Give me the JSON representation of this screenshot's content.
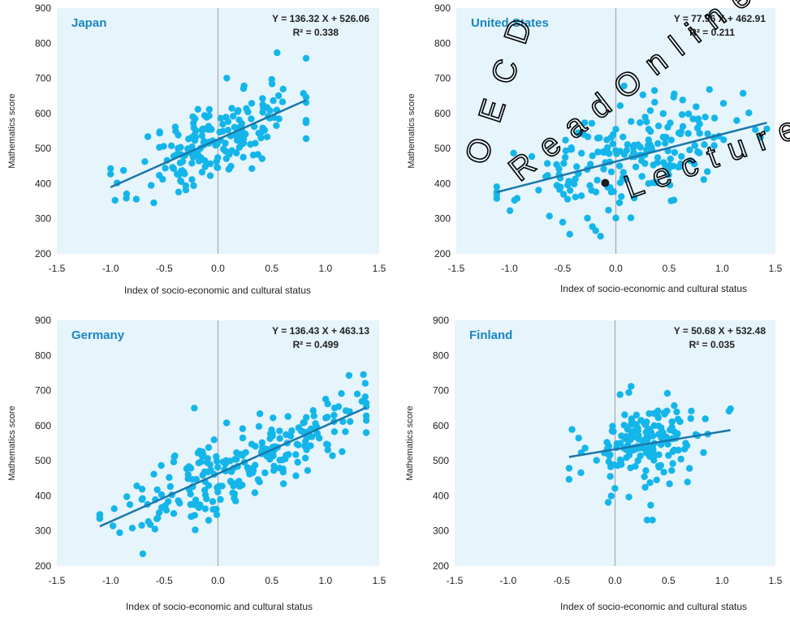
{
  "colors": {
    "plot_background": "#e6f4fc",
    "point": "#14b6ea",
    "trend_line": "#1a77a8",
    "country_label": "#1a86c0",
    "zero_line": "#a9a9a9",
    "axis_text": "#222222",
    "watermark": "#000000"
  },
  "watermark": {
    "lines": [
      "O E C D",
      "R e a d  O n l i n e",
      "L e c t u r e  s e u l e"
    ],
    "note": "OECD Read Online - Lecture seule"
  },
  "chart_data": [
    {
      "type": "scatter",
      "panel": "top-left",
      "country": "Japan",
      "equation": "Y = 136.32 X + 526.06",
      "r2": "R² = 0.338",
      "xlabel": "Index of socio-economic and cultural status",
      "ylabel": "Mathematics score",
      "xlim": [
        -1.5,
        1.5
      ],
      "ylim": [
        200,
        900
      ],
      "xticks": [
        "-1.5",
        "-1.0",
        "-0.5",
        "0.0",
        "0.5",
        "1.0",
        "1.5"
      ],
      "yticks": [
        "200",
        "300",
        "400",
        "500",
        "600",
        "700",
        "800",
        "900"
      ],
      "trend": {
        "slope": 136.32,
        "intercept": 526.06,
        "x_range": [
          -1.0,
          0.82
        ]
      },
      "seed": 11,
      "n_points": 190,
      "x_mean": 0.0,
      "x_sd": 0.38,
      "x_min": -1.0,
      "x_max": 0.82,
      "resid_sd": 60,
      "extra_points": [
        [
          -1.0,
          427
        ],
        [
          0.55,
          773
        ],
        [
          0.5,
          697
        ],
        [
          0.82,
          528
        ]
      ]
    },
    {
      "type": "scatter",
      "panel": "top-right",
      "country": "United States",
      "equation": "Y = 77.96 X + 462.91",
      "r2": "R² = 0.211",
      "xlabel": "Index of socio-economic and cultural status",
      "ylabel": "Mathematics score",
      "xlim": [
        -1.5,
        1.5
      ],
      "ylim": [
        200,
        900
      ],
      "xticks": [
        "-1.5",
        "-1.0",
        "-0.5",
        "0.0",
        "0.5",
        "1.0",
        "1.5"
      ],
      "yticks": [
        "200",
        "300",
        "400",
        "500",
        "600",
        "700",
        "800",
        "900"
      ],
      "trend": {
        "slope": 77.96,
        "intercept": 462.91,
        "x_range": [
          -1.12,
          1.42
        ]
      },
      "seed": 23,
      "n_points": 200,
      "x_mean": 0.1,
      "x_sd": 0.5,
      "x_min": -1.12,
      "x_max": 1.42,
      "resid_sd": 68,
      "extra_points": [
        [
          -1.12,
          376
        ],
        [
          1.42,
          556
        ],
        [
          0.88,
          668
        ],
        [
          -0.5,
          290
        ],
        [
          0.0,
          555
        ],
        [
          0.0,
          302
        ]
      ],
      "highlight_point": [
        -0.1,
        402
      ]
    },
    {
      "type": "scatter",
      "panel": "bottom-left",
      "country": "Germany",
      "equation": "Y = 136.43 X + 463.13",
      "r2": "R² = 0.499",
      "xlabel": "Index of socio-economic and cultural status",
      "ylabel": "Mathematics score",
      "xlim": [
        -1.5,
        1.5
      ],
      "ylim": [
        200,
        900
      ],
      "xticks": [
        "-1.5",
        "-1.0",
        "-0.5",
        "0.0",
        "0.5",
        "1.0",
        "1.5"
      ],
      "yticks": [
        "200",
        "300",
        "400",
        "500",
        "600",
        "700",
        "800",
        "900"
      ],
      "trend": {
        "slope": 136.43,
        "intercept": 463.13,
        "x_range": [
          -1.1,
          1.38
        ]
      },
      "seed": 37,
      "n_points": 240,
      "x_mean": 0.2,
      "x_sd": 0.55,
      "x_min": -1.1,
      "x_max": 1.38,
      "resid_sd": 55,
      "extra_points": [
        [
          -1.1,
          347
        ],
        [
          -0.7,
          235
        ],
        [
          1.22,
          743
        ],
        [
          1.38,
          615
        ],
        [
          -0.22,
          650
        ]
      ]
    },
    {
      "type": "scatter",
      "panel": "bottom-right",
      "country": "Finland",
      "equation": "Y = 50.68 X + 532.48",
      "r2": "R² = 0.035",
      "xlabel": "Index of socio-economic and cultural status",
      "ylabel": "Mathematics score",
      "xlim": [
        -1.5,
        1.5
      ],
      "ylim": [
        200,
        900
      ],
      "xticks": [
        "-1.5",
        "-1.0",
        "-0.5",
        "0.0",
        "0.5",
        "1.0",
        "1.5"
      ],
      "yticks": [
        "200",
        "300",
        "400",
        "500",
        "600",
        "700",
        "800",
        "900"
      ],
      "trend": {
        "slope": 50.68,
        "intercept": 532.48,
        "x_range": [
          -0.43,
          1.08
        ]
      },
      "seed": 53,
      "n_points": 170,
      "x_mean": 0.3,
      "x_sd": 0.28,
      "x_min": -0.43,
      "x_max": 1.08,
      "resid_sd": 62,
      "extra_points": [
        [
          -0.43,
          447
        ],
        [
          1.08,
          648
        ],
        [
          0.15,
          712
        ],
        [
          0.3,
          331
        ],
        [
          0.35,
          331
        ]
      ]
    }
  ]
}
